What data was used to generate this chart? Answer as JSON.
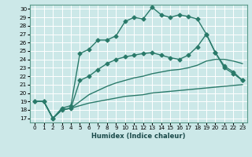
{
  "xlabel": "Humidex (Indice chaleur)",
  "bg_color": "#cce8e8",
  "grid_color": "#ffffff",
  "line_color": "#2a7a6a",
  "xlim": [
    -0.5,
    23.5
  ],
  "ylim": [
    16.5,
    30.5
  ],
  "yticks": [
    17,
    18,
    19,
    20,
    21,
    22,
    23,
    24,
    25,
    26,
    27,
    28,
    29,
    30
  ],
  "xticks": [
    0,
    1,
    2,
    3,
    4,
    5,
    6,
    7,
    8,
    9,
    10,
    11,
    12,
    13,
    14,
    15,
    16,
    17,
    18,
    19,
    20,
    21,
    22,
    23
  ],
  "lines": [
    {
      "x": [
        0,
        1,
        2,
        3,
        4,
        5,
        6,
        7,
        8,
        9,
        10,
        11,
        12,
        13,
        14,
        15,
        16,
        17,
        18,
        19,
        20,
        21,
        22,
        23
      ],
      "y": [
        19.0,
        19.0,
        17.0,
        18.2,
        18.5,
        24.7,
        25.2,
        26.3,
        26.3,
        26.8,
        28.5,
        29.0,
        28.8,
        30.2,
        29.3,
        29.0,
        29.3,
        29.1,
        28.8,
        27.0,
        24.8,
        23.2,
        22.5,
        21.5
      ],
      "marker": "D",
      "markersize": 2.5,
      "linewidth": 1.0
    },
    {
      "x": [
        0,
        1,
        2,
        3,
        4,
        5,
        6,
        7,
        8,
        9,
        10,
        11,
        12,
        13,
        14,
        15,
        16,
        17,
        18,
        19,
        20,
        21,
        22,
        23
      ],
      "y": [
        19.0,
        19.0,
        17.0,
        18.0,
        18.2,
        21.5,
        22.0,
        22.8,
        23.5,
        24.0,
        24.3,
        24.5,
        24.7,
        24.8,
        24.5,
        24.2,
        24.0,
        24.5,
        25.5,
        27.0,
        24.8,
        23.0,
        22.3,
        21.5
      ],
      "marker": "D",
      "markersize": 2.5,
      "linewidth": 1.0
    },
    {
      "x": [
        0,
        1,
        2,
        3,
        4,
        5,
        6,
        7,
        8,
        9,
        10,
        11,
        12,
        13,
        14,
        15,
        16,
        17,
        18,
        19,
        20,
        21,
        22,
        23
      ],
      "y": [
        19.0,
        19.0,
        17.0,
        18.0,
        18.2,
        19.0,
        19.8,
        20.3,
        20.8,
        21.2,
        21.5,
        21.8,
        22.0,
        22.3,
        22.5,
        22.7,
        22.8,
        23.0,
        23.3,
        23.8,
        24.0,
        24.0,
        23.8,
        23.5
      ],
      "marker": null,
      "markersize": 0,
      "linewidth": 1.0
    },
    {
      "x": [
        0,
        1,
        2,
        3,
        4,
        5,
        6,
        7,
        8,
        9,
        10,
        11,
        12,
        13,
        14,
        15,
        16,
        17,
        18,
        19,
        20,
        21,
        22,
        23
      ],
      "y": [
        19.0,
        19.0,
        17.0,
        18.0,
        18.2,
        18.5,
        18.8,
        19.0,
        19.2,
        19.4,
        19.6,
        19.7,
        19.8,
        20.0,
        20.1,
        20.2,
        20.3,
        20.4,
        20.5,
        20.6,
        20.7,
        20.8,
        20.9,
        21.0
      ],
      "marker": null,
      "markersize": 0,
      "linewidth": 1.0
    }
  ]
}
